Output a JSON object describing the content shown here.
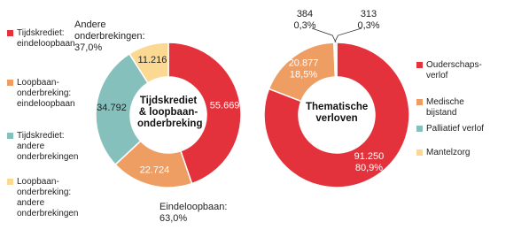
{
  "chart_data": [
    {
      "type": "pie",
      "center_label": "Tijdskrediet & loopbaan-onderbreking",
      "categories": [
        "Tijdskrediet: eindeloopbaan",
        "Loopbaan-onderbreking: eindeloopbaan",
        "Tijdskrediet: andere onderbrekingen",
        "Loopbaan-onderbreking: andere onderbrekingen"
      ],
      "values": [
        55669,
        22724,
        34792,
        11216
      ],
      "value_labels": [
        "55.669",
        "22.724",
        "34.792",
        "11.216"
      ],
      "colors": [
        "#e3323b",
        "#ef9e63",
        "#86c0bd",
        "#fcd993"
      ],
      "annotations": [
        {
          "text": "Andere onderbrekingen:",
          "value": 37.0,
          "label": "37,0%"
        },
        {
          "text": "Eindeloopbaan:",
          "value": 63.0,
          "label": "63,0%"
        }
      ]
    },
    {
      "type": "pie",
      "center_label": "Thematische verloven",
      "categories": [
        "Ouderschaps-verlof",
        "Medische bijstand",
        "Palliatief verlof",
        "Mantelzorg"
      ],
      "values": [
        91250,
        20877,
        313,
        384
      ],
      "value_labels": [
        "91.250",
        "20.877",
        "313",
        "384"
      ],
      "percents": [
        80.9,
        18.5,
        0.3,
        0.3
      ],
      "percent_labels": [
        "80,9%",
        "18,5%",
        "0,3%",
        "0,3%"
      ],
      "colors": [
        "#e3323b",
        "#ef9e63",
        "#86c0bd",
        "#fcd993"
      ]
    }
  ]
}
